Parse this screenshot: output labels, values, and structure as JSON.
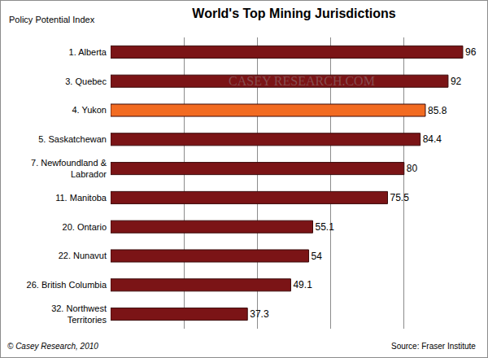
{
  "chart_data": {
    "type": "bar",
    "orientation": "horizontal",
    "title": "World's Top Mining Jurisdictions",
    "ylabel": "Policy Potential Index",
    "categories": [
      "1. Alberta",
      "3. Quebec",
      "4. Yukon",
      "5. Saskatchewan",
      "7. Newfoundland & Labrador",
      "11. Manitoba",
      "20. Ontario",
      "22. Nunavut",
      "26. British Columbia",
      "32. Northwest Territories"
    ],
    "values": [
      96,
      92,
      85.8,
      84.4,
      80,
      75.5,
      55.1,
      54,
      49.1,
      37.3
    ],
    "colors": [
      "#7b1416",
      "#7b1416",
      "#f26b21",
      "#7b1416",
      "#7b1416",
      "#7b1416",
      "#7b1416",
      "#7b1416",
      "#7b1416",
      "#7b1416"
    ],
    "xlim": [
      0,
      100
    ],
    "xticks": [
      0,
      20,
      40,
      60,
      80,
      100
    ],
    "grid": true,
    "data_labels": true,
    "tick_labels": "y",
    "annotations": [
      "© Casey Research, 2010",
      "Source: Fraser Institute",
      "CASEY RESEARCH.COM"
    ]
  }
}
